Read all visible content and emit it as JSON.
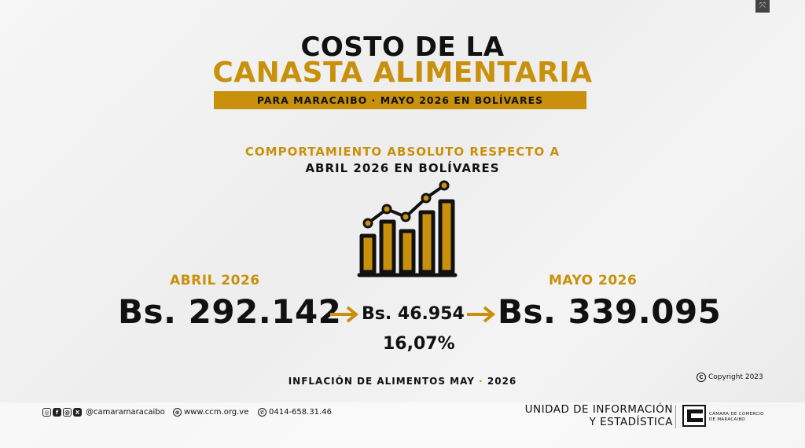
{
  "title": {
    "line1": "COSTO DE LA",
    "line2": "CANASTA ALIMENTARIA",
    "subtitle": "PARA MARACAIBO ·  MAYO 2026 EN BOLÍVARES"
  },
  "section": {
    "line1": "COMPORTAMIENTO ABSOLUTO RESPECTO A",
    "line2": "ABRIL 2026 EN BOLÍVARES"
  },
  "comparison": {
    "from_label": "ABRIL 2026",
    "from_value": "Bs. 292.142",
    "diff_value": "Bs. 46.954",
    "percent": "16,07%",
    "to_label": "MAYO 2026",
    "to_value": "Bs. 339.095"
  },
  "footer": {
    "caption_main": "INFLACIÓN DE ALIMENTOS MAY",
    "caption_sep": "·",
    "caption_year": "2026",
    "copyright": "Copyright 2023",
    "social_handle": "@camaramaracaibo",
    "website": "www.ccm.org.ve",
    "phone": "0414-658.31.46",
    "unit_line1": "UNIDAD DE INFORMACIÓN",
    "unit_line2": "Y ESTADÍSTICA",
    "chamber_line1": "CÁMARA DE COMERCIO",
    "chamber_line2": "DE MARACAIBO"
  },
  "icons": [
    "fullscreen-icon",
    "growth-chart-icon",
    "arrow-right-icon",
    "copyright-icon",
    "instagram-icon",
    "facebook-icon",
    "threads-icon",
    "x-icon",
    "web-icon",
    "whatsapp-icon"
  ],
  "colors": {
    "accent": "#c9900c",
    "text": "#111111"
  }
}
